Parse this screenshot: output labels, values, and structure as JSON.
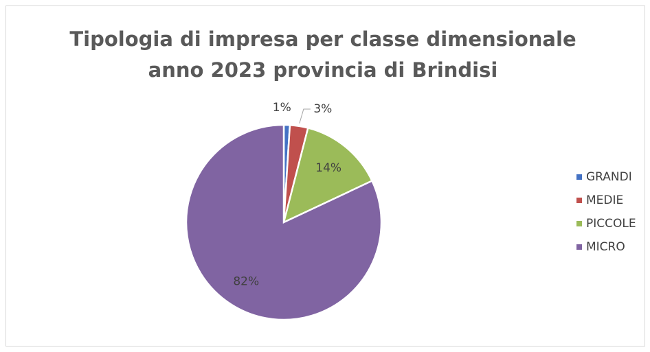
{
  "chart_data": {
    "type": "pie",
    "title": [
      "Tipologia di impresa per classe dimensionale",
      "anno 2023 provincia di Brindisi"
    ],
    "categories": [
      "GRANDI",
      "MEDIE",
      "PICCOLE",
      "MICRO"
    ],
    "values": [
      1,
      3,
      14,
      82
    ],
    "value_labels": [
      "1%",
      "3%",
      "14%",
      "82%"
    ],
    "colors": [
      "#4472c4",
      "#c0504d",
      "#9bbb59",
      "#8064a2"
    ],
    "legend": "right"
  }
}
